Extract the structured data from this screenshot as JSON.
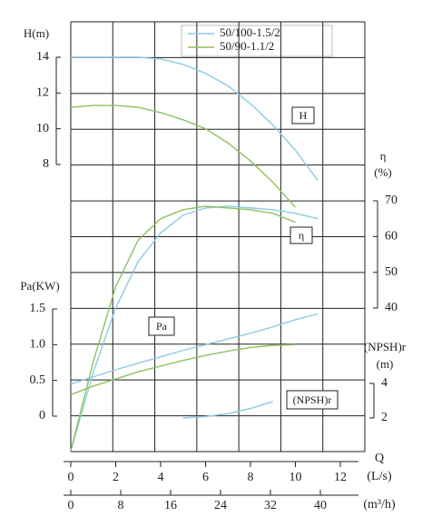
{
  "chart_data": {
    "type": "line",
    "xlim": [
      0,
      12
    ],
    "xticks": [
      0,
      2,
      4,
      6,
      8,
      10,
      12
    ],
    "xlabel": "Q",
    "xunit": "(L/s)",
    "x2lim": [
      0,
      40
    ],
    "x2ticks": [
      0,
      8,
      16,
      24,
      32,
      40
    ],
    "x2unit": "(m³/h)",
    "axes": {
      "H": {
        "label": [
          "H(m)"
        ],
        "ylim": [
          8,
          14
        ],
        "yticks": [
          8,
          10,
          12,
          14
        ],
        "annotation": "H"
      },
      "eta": {
        "label": [
          "η",
          "(%)"
        ],
        "ylim": [
          40,
          70
        ],
        "yticks": [
          40,
          50,
          60,
          70
        ],
        "annotation": "η"
      },
      "Pa": {
        "label": [
          "Pa(KW)"
        ],
        "ylim": [
          0,
          1.5
        ],
        "yticks": [
          0,
          0.5,
          {
            "value": 1,
            "label": "1.0"
          },
          1.5
        ],
        "annotation": "Pa"
      },
      "NPSH": {
        "label": [
          "(NPSH)r",
          "(m)"
        ],
        "ylim": [
          2,
          4
        ],
        "yticks": [
          2,
          4
        ],
        "annotation": "(NPSH)r"
      }
    },
    "series": [
      {
        "name": "50/100-1.5/2",
        "color": "#8ccbe3",
        "H": {
          "x": [
            0,
            1,
            2,
            3,
            4,
            5,
            6,
            7,
            8,
            9,
            10,
            11
          ],
          "values": [
            14,
            14,
            14,
            14,
            13.9,
            13.6,
            13.1,
            12.4,
            11.4,
            10.2,
            8.8,
            7.1
          ]
        },
        "eta": {
          "x": [
            0,
            1,
            2,
            3,
            4,
            5,
            6,
            7,
            8,
            9,
            10,
            11
          ],
          "values": [
            0,
            22,
            40,
            53,
            61,
            66,
            68,
            68.5,
            68,
            67.5,
            66.5,
            65
          ]
        },
        "Pa": {
          "x": [
            0,
            1,
            2,
            3,
            4,
            5,
            6,
            7,
            8,
            9,
            10,
            11
          ],
          "values": [
            0.45,
            0.55,
            0.65,
            0.74,
            0.83,
            0.92,
            1.0,
            1.08,
            1.16,
            1.25,
            1.35,
            1.43
          ]
        },
        "NPSH": {
          "x": [
            5,
            6,
            7,
            8,
            9
          ],
          "values": [
            2,
            2.08,
            2.25,
            2.55,
            2.95
          ]
        }
      },
      {
        "name": "50/90-1.1/2",
        "color": "#8fc05e",
        "H": {
          "x": [
            0,
            1,
            2,
            3,
            4,
            5,
            6,
            7,
            8,
            9,
            10
          ],
          "values": [
            11.2,
            11.3,
            11.3,
            11.2,
            10.9,
            10.5,
            10,
            9.2,
            8.2,
            7,
            5.6
          ]
        },
        "eta": {
          "x": [
            0,
            1,
            2,
            3,
            4,
            5,
            6,
            7,
            8,
            9,
            10
          ],
          "values": [
            0,
            25,
            46,
            59,
            65,
            67.5,
            68.5,
            68,
            67.5,
            66.5,
            64
          ]
        },
        "Pa": {
          "x": [
            0,
            1,
            2,
            3,
            4,
            5,
            6,
            7,
            8,
            9,
            10
          ],
          "values": [
            0.3,
            0.42,
            0.52,
            0.62,
            0.7,
            0.78,
            0.85,
            0.91,
            0.96,
            0.99,
            1.0
          ]
        }
      }
    ]
  }
}
